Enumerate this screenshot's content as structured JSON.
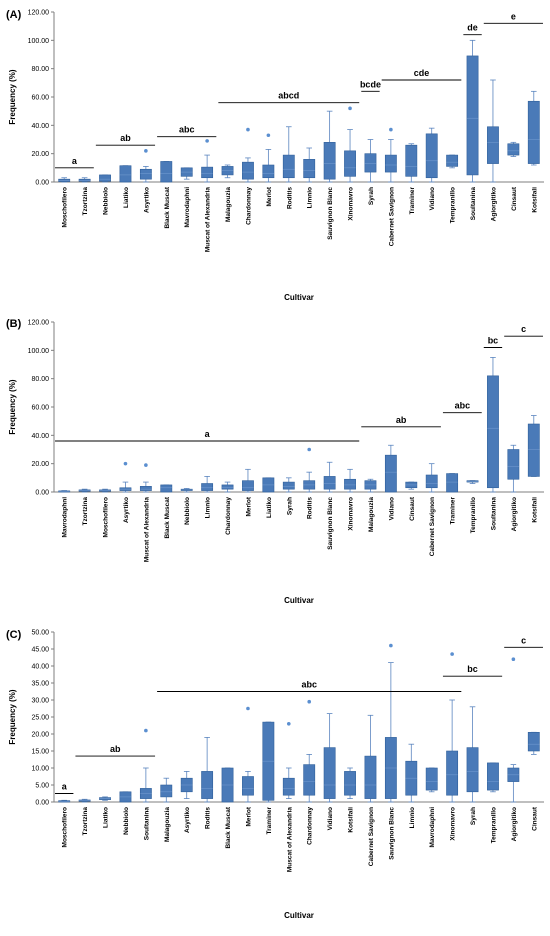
{
  "colors": {
    "box": "#4a7ab8",
    "box_edge": "#2f5f9a",
    "whisker": "#5b85bf",
    "point": "#5b8fd0",
    "axis": "#7f7f7f",
    "sig_line": "#000000"
  },
  "chart_data": [
    {
      "type": "box",
      "panel_label": "(A)",
      "ylabel": "Frequency (%)",
      "xlabel": "Cultivar",
      "ylim": [
        0,
        120
      ],
      "yticks": [
        "0.00",
        "20.00",
        "40.00",
        "60.00",
        "80.00",
        "100.00",
        "120.00"
      ],
      "grid": false,
      "categories": [
        "Moschofilero",
        "Tzortzina",
        "Nebbiolo",
        "Liatiko",
        "Asyrtiko",
        "Black Muscat",
        "Mavrodaphni",
        "Muscat of Alexandria",
        "Malagouzia",
        "Chardonnay",
        "Merlot",
        "Roditis",
        "Limnio",
        "Sauvignon Blanc",
        "Xinomavro",
        "Syrah",
        "Cabernet Savignon",
        "Traminer",
        "Vidiano",
        "Tempranillo",
        "Soultanina",
        "Agiorgitiko",
        "Cinsaut",
        "Kotsifali"
      ],
      "boxes": [
        {
          "min": 0,
          "q1": 0.3,
          "median": 1,
          "q3": 2,
          "max": 3,
          "outliers": []
        },
        {
          "min": 0,
          "q1": 0.5,
          "median": 1.2,
          "q3": 2,
          "max": 3,
          "outliers": []
        },
        {
          "min": 0,
          "q1": 0.5,
          "median": 2,
          "q3": 5,
          "max": 5,
          "outliers": []
        },
        {
          "min": 0,
          "q1": 0,
          "median": 5,
          "q3": 11.5,
          "max": 11.5,
          "outliers": []
        },
        {
          "min": 0,
          "q1": 2,
          "median": 6,
          "q3": 9,
          "max": 11,
          "outliers": [
            22
          ]
        },
        {
          "min": 0,
          "q1": 0,
          "median": 6,
          "q3": 14.5,
          "max": 14.5,
          "outliers": []
        },
        {
          "min": 2,
          "q1": 4,
          "median": 7,
          "q3": 10,
          "max": 10,
          "outliers": []
        },
        {
          "min": 0,
          "q1": 3,
          "median": 6,
          "q3": 10.5,
          "max": 19,
          "outliers": [
            29
          ]
        },
        {
          "min": 3,
          "q1": 5,
          "median": 8,
          "q3": 11,
          "max": 12,
          "outliers": []
        },
        {
          "min": 0,
          "q1": 2,
          "median": 7,
          "q3": 14,
          "max": 17,
          "outliers": [
            37
          ]
        },
        {
          "min": 0,
          "q1": 3,
          "median": 6,
          "q3": 12,
          "max": 23,
          "outliers": [
            33
          ]
        },
        {
          "min": 0,
          "q1": 3,
          "median": 9,
          "q3": 19,
          "max": 39,
          "outliers": []
        },
        {
          "min": 0,
          "q1": 3,
          "median": 8,
          "q3": 16,
          "max": 24,
          "outliers": []
        },
        {
          "min": 0,
          "q1": 2,
          "median": 13,
          "q3": 28,
          "max": 50,
          "outliers": []
        },
        {
          "min": 0,
          "q1": 4,
          "median": 10,
          "q3": 22,
          "max": 37,
          "outliers": [
            52
          ]
        },
        {
          "min": 0,
          "q1": 7,
          "median": 13,
          "q3": 20,
          "max": 30,
          "outliers": []
        },
        {
          "min": 0,
          "q1": 7,
          "median": 12,
          "q3": 19,
          "max": 30,
          "outliers": [
            37
          ]
        },
        {
          "min": 0,
          "q1": 4,
          "median": 11,
          "q3": 26,
          "max": 27,
          "outliers": []
        },
        {
          "min": 0,
          "q1": 3,
          "median": 15,
          "q3": 34,
          "max": 38,
          "outliers": []
        },
        {
          "min": 10,
          "q1": 11,
          "median": 14,
          "q3": 19,
          "max": 19,
          "outliers": []
        },
        {
          "min": 0,
          "q1": 5,
          "median": 45,
          "q3": 89,
          "max": 100,
          "outliers": []
        },
        {
          "min": 0,
          "q1": 13,
          "median": 28,
          "q3": 39,
          "max": 72,
          "outliers": []
        },
        {
          "min": 18,
          "q1": 19,
          "median": 22,
          "q3": 27,
          "max": 28,
          "outliers": []
        },
        {
          "min": 12,
          "q1": 13,
          "median": 30,
          "q3": 57,
          "max": 64,
          "outliers": []
        }
      ],
      "groups": [
        {
          "label": "a",
          "start": 0,
          "end": 1,
          "y": 10
        },
        {
          "label": "ab",
          "start": 2,
          "end": 4,
          "y": 26
        },
        {
          "label": "abc",
          "start": 5,
          "end": 7,
          "y": 32
        },
        {
          "label": "abcd",
          "start": 8,
          "end": 14,
          "y": 56
        },
        {
          "label": "bcde",
          "start": 15,
          "end": 15,
          "y": 64
        },
        {
          "label": "cde",
          "start": 16,
          "end": 19,
          "y": 72
        },
        {
          "label": "de",
          "start": 20,
          "end": 20,
          "y": 104
        },
        {
          "label": "e",
          "start": 21,
          "end": 23,
          "y": 112
        }
      ]
    },
    {
      "type": "box",
      "panel_label": "(B)",
      "ylabel": "Frequency (%)",
      "xlabel": "Cultivar",
      "ylim": [
        0,
        120
      ],
      "yticks": [
        "0.00",
        "20.00",
        "40.00",
        "60.00",
        "80.00",
        "100.00",
        "120.00"
      ],
      "grid": false,
      "categories": [
        "Mavrodaphni",
        "Tzortzina",
        "Moschofilero",
        "Asyrtiko",
        "Muscat of Alexandria",
        "Black Muscat",
        "Nebbiolo",
        "Limnio",
        "Chardonnay",
        "Merlot",
        "Liatiko",
        "Syrah",
        "Roditis",
        "Sauvignon Blanc",
        "Xinomavro",
        "Malagouzia",
        "Vidiano",
        "Cinsaut",
        "Cabernet Savignon",
        "Traminer",
        "Tempranillo",
        "Soultanina",
        "Agiorgitiko",
        "Kotsifali"
      ],
      "boxes": [
        {
          "min": 0,
          "q1": 0,
          "median": 0.5,
          "q3": 0.8,
          "max": 1,
          "outliers": []
        },
        {
          "min": 0,
          "q1": 0.5,
          "median": 1,
          "q3": 1.5,
          "max": 2,
          "outliers": []
        },
        {
          "min": 0,
          "q1": 0.5,
          "median": 1,
          "q3": 1.5,
          "max": 2,
          "outliers": []
        },
        {
          "min": 0,
          "q1": 1,
          "median": 2,
          "q3": 3,
          "max": 7,
          "outliers": [
            20
          ]
        },
        {
          "min": 0,
          "q1": 1,
          "median": 2,
          "q3": 4,
          "max": 7,
          "outliers": [
            19
          ]
        },
        {
          "min": 0,
          "q1": 0,
          "median": 3,
          "q3": 5,
          "max": 5,
          "outliers": []
        },
        {
          "min": 0,
          "q1": 1,
          "median": 1.5,
          "q3": 2,
          "max": 2.5,
          "outliers": []
        },
        {
          "min": 0,
          "q1": 1,
          "median": 3,
          "q3": 6,
          "max": 11,
          "outliers": []
        },
        {
          "min": 0,
          "q1": 2,
          "median": 3,
          "q3": 5,
          "max": 7,
          "outliers": []
        },
        {
          "min": 0,
          "q1": 1,
          "median": 3,
          "q3": 8,
          "max": 16,
          "outliers": []
        },
        {
          "min": 0,
          "q1": 0,
          "median": 5,
          "q3": 10,
          "max": 10,
          "outliers": []
        },
        {
          "min": 0,
          "q1": 2,
          "median": 4,
          "q3": 7,
          "max": 10,
          "outliers": []
        },
        {
          "min": 0,
          "q1": 2,
          "median": 5,
          "q3": 8,
          "max": 14,
          "outliers": [
            30
          ]
        },
        {
          "min": 0,
          "q1": 2,
          "median": 6,
          "q3": 11,
          "max": 21,
          "outliers": []
        },
        {
          "min": 0,
          "q1": 2,
          "median": 5,
          "q3": 9,
          "max": 16,
          "outliers": []
        },
        {
          "min": 0,
          "q1": 2,
          "median": 5,
          "q3": 8,
          "max": 9,
          "outliers": []
        },
        {
          "min": 0,
          "q1": 0,
          "median": 14,
          "q3": 26,
          "max": 33,
          "outliers": []
        },
        {
          "min": 2,
          "q1": 3,
          "median": 5,
          "q3": 7,
          "max": 7,
          "outliers": []
        },
        {
          "min": 0,
          "q1": 3,
          "median": 6,
          "q3": 12,
          "max": 20,
          "outliers": []
        },
        {
          "min": 0,
          "q1": 0,
          "median": 7,
          "q3": 13,
          "max": 13,
          "outliers": []
        },
        {
          "min": 6,
          "q1": 7,
          "median": 7.5,
          "q3": 8,
          "max": 8,
          "outliers": []
        },
        {
          "min": 0,
          "q1": 3,
          "median": 45,
          "q3": 82,
          "max": 95,
          "outliers": []
        },
        {
          "min": 0,
          "q1": 9,
          "median": 18,
          "q3": 30,
          "max": 33,
          "outliers": []
        },
        {
          "min": 11,
          "q1": 11,
          "median": 30,
          "q3": 48,
          "max": 54,
          "outliers": []
        }
      ],
      "groups": [
        {
          "label": "a",
          "start": 0,
          "end": 14,
          "y": 36
        },
        {
          "label": "ab",
          "start": 15,
          "end": 18,
          "y": 46
        },
        {
          "label": "abc",
          "start": 19,
          "end": 20,
          "y": 56
        },
        {
          "label": "bc",
          "start": 21,
          "end": 21,
          "y": 102
        },
        {
          "label": "c",
          "start": 22,
          "end": 23,
          "y": 110
        }
      ]
    },
    {
      "type": "box",
      "panel_label": "(C)",
      "ylabel": "Frequency (%)",
      "xlabel": "Cultivar",
      "ylim": [
        0,
        50
      ],
      "yticks": [
        "0.00",
        "5.00",
        "10.00",
        "15.00",
        "20.00",
        "25.00",
        "30.00",
        "35.00",
        "40.00",
        "45.00",
        "50.00"
      ],
      "grid": false,
      "categories": [
        "Moschofilero",
        "Tzortzina",
        "Liatiko",
        "Nebbiolo",
        "Soultanina",
        "Malagouzia",
        "Asyrtiko",
        "Roditis",
        "Black Muscat",
        "Merlot",
        "Traminer",
        "Muscat of Alexandria",
        "Chardonnay",
        "Vidiano",
        "Kotsifali",
        "Cabernet Savignon",
        "Sauvignon Blanc",
        "Limnio",
        "Mavrodaphni",
        "Xinomavro",
        "Syrah",
        "Tempranillo",
        "Agiorgitiko",
        "Cinsaut"
      ],
      "boxes": [
        {
          "min": 0,
          "q1": 0,
          "median": 0.2,
          "q3": 0.4,
          "max": 0.5,
          "outliers": []
        },
        {
          "min": 0,
          "q1": 0.2,
          "median": 0.4,
          "q3": 0.6,
          "max": 0.8,
          "outliers": []
        },
        {
          "min": 0.5,
          "q1": 0.7,
          "median": 1,
          "q3": 1.3,
          "max": 1.5,
          "outliers": []
        },
        {
          "min": 0,
          "q1": 0,
          "median": 1.5,
          "q3": 3,
          "max": 3,
          "outliers": []
        },
        {
          "min": 0,
          "q1": 1,
          "median": 2.5,
          "q3": 4,
          "max": 10,
          "outliers": [
            21
          ]
        },
        {
          "min": 0,
          "q1": 1.5,
          "median": 3,
          "q3": 5,
          "max": 7,
          "outliers": []
        },
        {
          "min": 1,
          "q1": 3,
          "median": 5,
          "q3": 7,
          "max": 9,
          "outliers": []
        },
        {
          "min": 0,
          "q1": 1,
          "median": 4,
          "q3": 9,
          "max": 19,
          "outliers": []
        },
        {
          "min": 0,
          "q1": 0,
          "median": 5,
          "q3": 10,
          "max": 10,
          "outliers": []
        },
        {
          "min": 0,
          "q1": 2,
          "median": 4,
          "q3": 7.5,
          "max": 9,
          "outliers": [
            27.5
          ]
        },
        {
          "min": 0,
          "q1": 0.5,
          "median": 12,
          "q3": 23.5,
          "max": 23.5,
          "outliers": []
        },
        {
          "min": 1,
          "q1": 2,
          "median": 4,
          "q3": 7,
          "max": 10,
          "outliers": [
            23
          ]
        },
        {
          "min": 0,
          "q1": 2,
          "median": 6,
          "q3": 11,
          "max": 14,
          "outliers": [
            29.5
          ]
        },
        {
          "min": 0,
          "q1": 1,
          "median": 5,
          "q3": 16,
          "max": 26,
          "outliers": []
        },
        {
          "min": 1,
          "q1": 2,
          "median": 5,
          "q3": 9,
          "max": 10,
          "outliers": []
        },
        {
          "min": 0,
          "q1": 1,
          "median": 5,
          "q3": 13.5,
          "max": 25.5,
          "outliers": []
        },
        {
          "min": 0,
          "q1": 1,
          "median": 10,
          "q3": 19,
          "max": 41,
          "outliers": [
            46
          ]
        },
        {
          "min": 0,
          "q1": 2,
          "median": 7,
          "q3": 12,
          "max": 17,
          "outliers": []
        },
        {
          "min": 3,
          "q1": 3.5,
          "median": 6,
          "q3": 10,
          "max": 10,
          "outliers": []
        },
        {
          "min": 0,
          "q1": 2,
          "median": 8,
          "q3": 15,
          "max": 30,
          "outliers": [
            43.5
          ]
        },
        {
          "min": 0,
          "q1": 3,
          "median": 9,
          "q3": 16,
          "max": 28,
          "outliers": []
        },
        {
          "min": 3,
          "q1": 3.5,
          "median": 6,
          "q3": 11.5,
          "max": 11.5,
          "outliers": []
        },
        {
          "min": 0,
          "q1": 6,
          "median": 8,
          "q3": 10,
          "max": 11,
          "outliers": [
            42
          ]
        },
        {
          "min": 14,
          "q1": 15,
          "median": 17,
          "q3": 20.5,
          "max": 20.5,
          "outliers": []
        }
      ],
      "groups": [
        {
          "label": "a",
          "start": 0,
          "end": 0,
          "y": 2.5
        },
        {
          "label": "ab",
          "start": 1,
          "end": 4,
          "y": 13.5
        },
        {
          "label": "abc",
          "start": 5,
          "end": 19,
          "y": 32.5
        },
        {
          "label": "bc",
          "start": 19,
          "end": 21,
          "y": 37
        },
        {
          "label": "c",
          "start": 22,
          "end": 23,
          "y": 45.5
        }
      ]
    }
  ]
}
